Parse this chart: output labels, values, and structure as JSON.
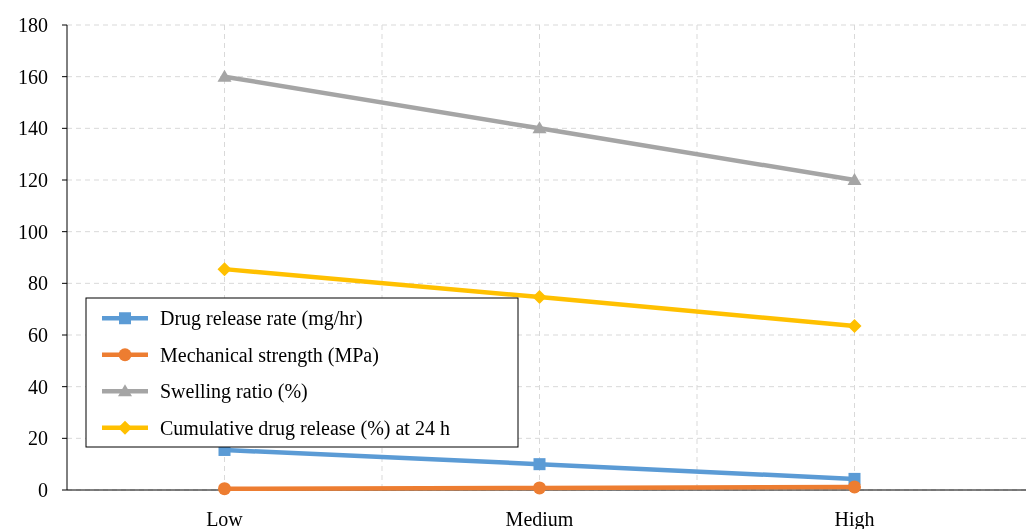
{
  "chart_data": {
    "type": "line",
    "categories": [
      "Low",
      "Medium",
      "High"
    ],
    "ylim": [
      0,
      180
    ],
    "yticks": [
      0,
      20,
      40,
      60,
      80,
      100,
      120,
      140,
      160,
      180
    ],
    "grid": true,
    "legend": "bottom left",
    "series": [
      {
        "name": "Drug release rate (mg/hr)",
        "color": "#5b9bd5",
        "marker": "square",
        "values": [
          15.5,
          10,
          4.3
        ]
      },
      {
        "name": "Mechanical strength (MPa)",
        "color": "#ed7d31",
        "marker": "circle",
        "values": [
          0.5,
          0.8,
          1.2
        ]
      },
      {
        "name": "Swelling ratio (%)",
        "color": "#a5a5a5",
        "marker": "triangle",
        "values": [
          160,
          140,
          120
        ]
      },
      {
        "name": "Cumulative drug release (%) at 24 h",
        "color": "#ffc000",
        "marker": "diamond",
        "values": [
          85.5,
          74.7,
          63.5
        ]
      }
    ]
  }
}
